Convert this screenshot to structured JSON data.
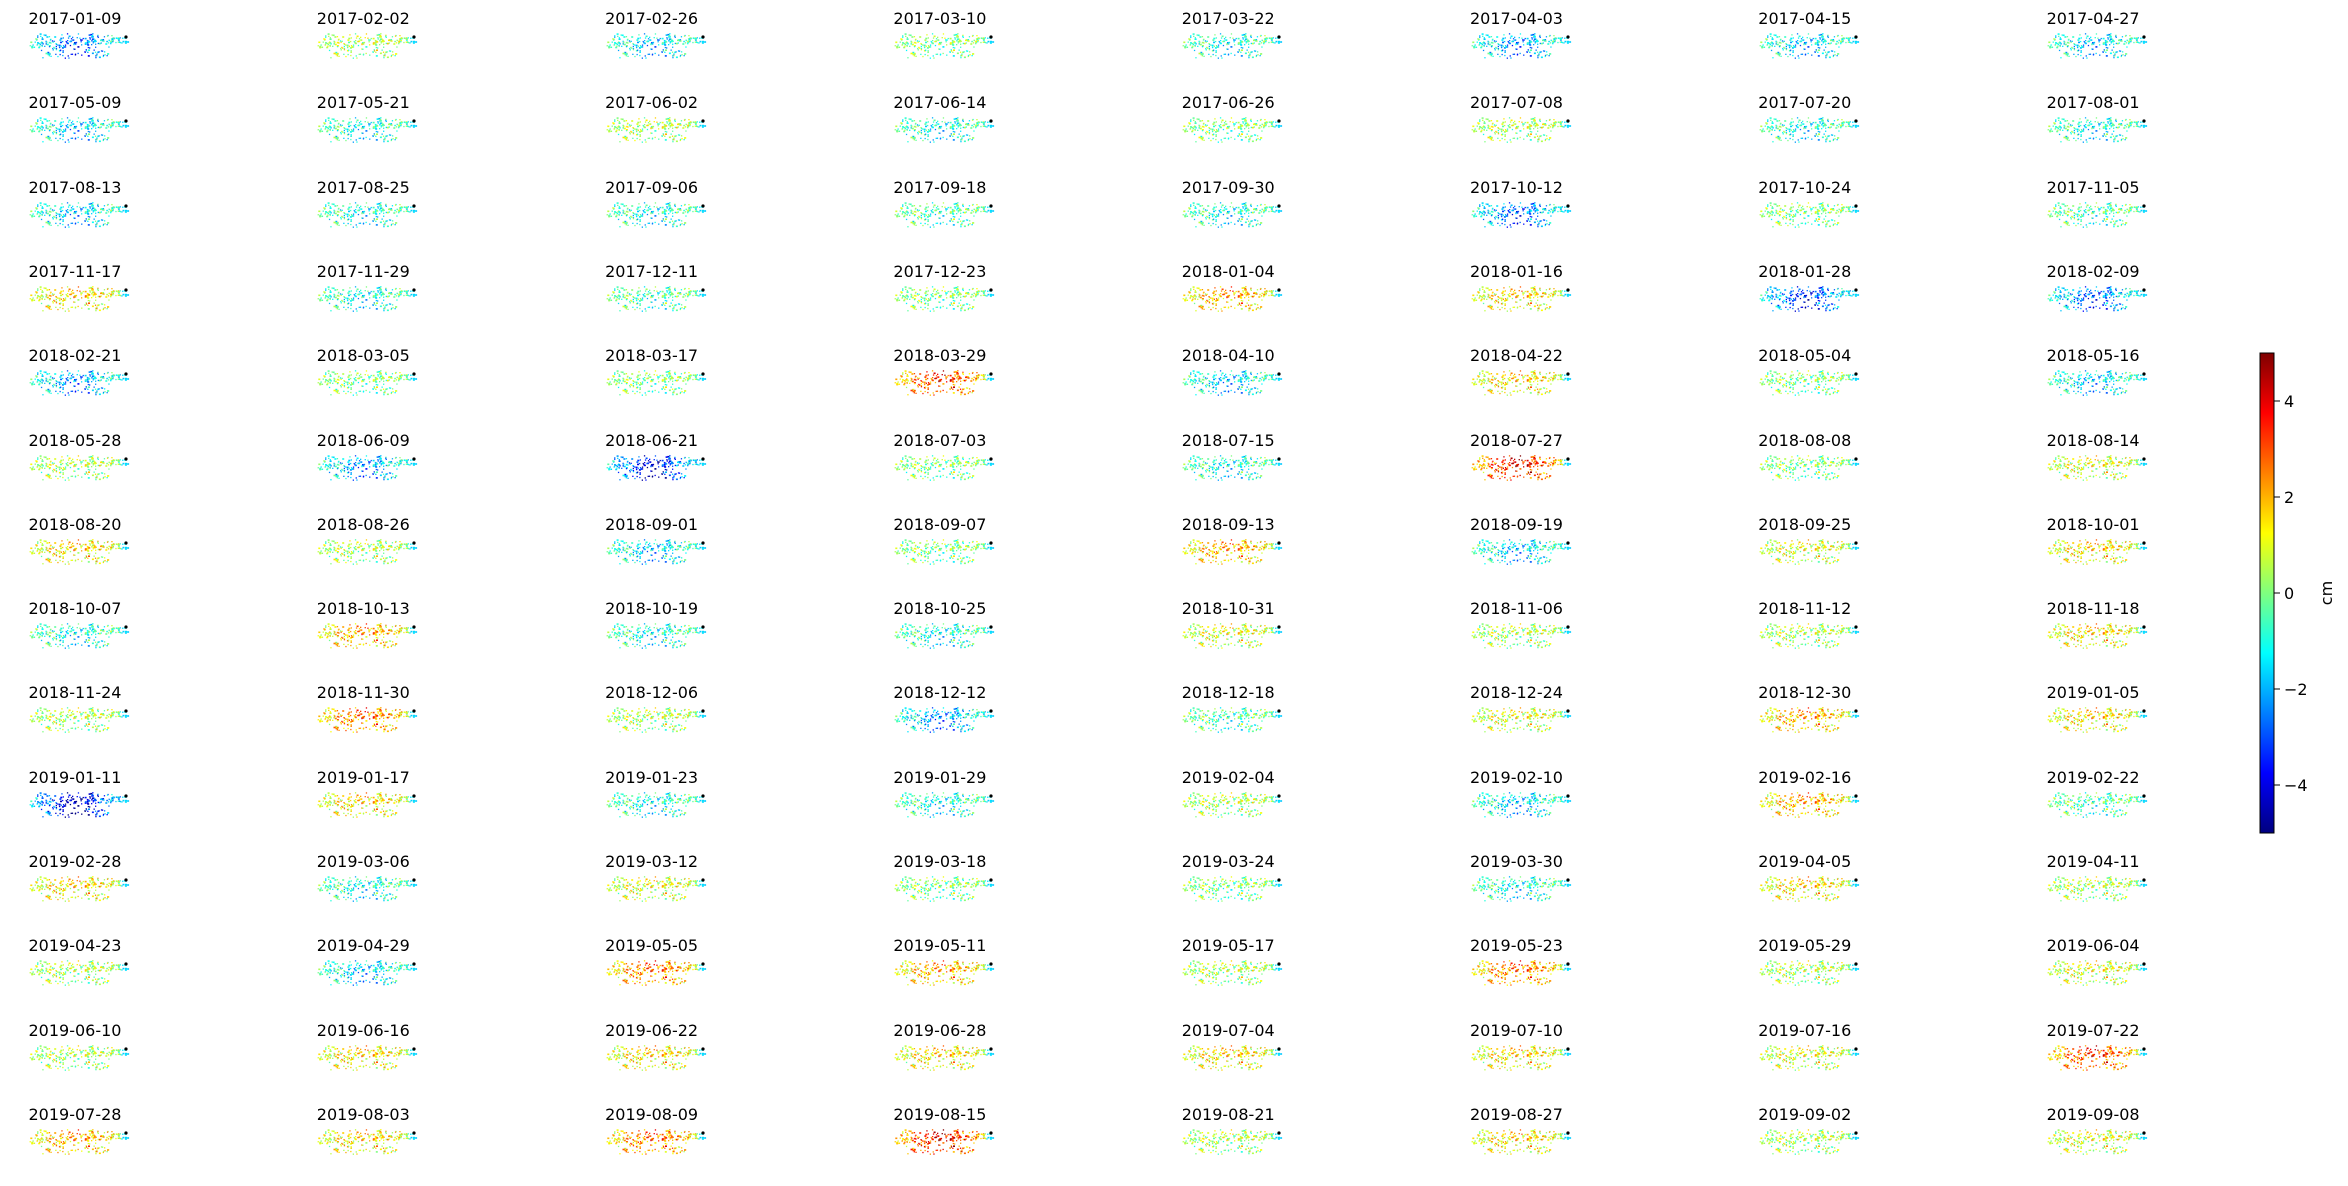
{
  "chart_data": {
    "type": "heatmap",
    "description_free": true,
    "panel_dates": [
      "2017-01-09",
      "2017-02-02",
      "2017-02-26",
      "2017-03-10",
      "2017-03-22",
      "2017-04-03",
      "2017-04-15",
      "2017-04-27",
      "2017-05-09",
      "2017-05-21",
      "2017-06-02",
      "2017-06-14",
      "2017-06-26",
      "2017-07-08",
      "2017-07-20",
      "2017-08-01",
      "2017-08-13",
      "2017-08-25",
      "2017-09-06",
      "2017-09-18",
      "2017-09-30",
      "2017-10-12",
      "2017-10-24",
      "2017-11-05",
      "2017-11-17",
      "2017-11-29",
      "2017-12-11",
      "2017-12-23",
      "2018-01-04",
      "2018-01-16",
      "2018-01-28",
      "2018-02-09",
      "2018-02-21",
      "2018-03-05",
      "2018-03-17",
      "2018-03-29",
      "2018-04-10",
      "2018-04-22",
      "2018-05-04",
      "2018-05-16",
      "2018-05-28",
      "2018-06-09",
      "2018-06-21",
      "2018-07-03",
      "2018-07-15",
      "2018-07-27",
      "2018-08-08",
      "2018-08-14",
      "2018-08-20",
      "2018-08-26",
      "2018-09-01",
      "2018-09-07",
      "2018-09-13",
      "2018-09-19",
      "2018-09-25",
      "2018-10-01",
      "2018-10-07",
      "2018-10-13",
      "2018-10-19",
      "2018-10-25",
      "2018-10-31",
      "2018-11-06",
      "2018-11-12",
      "2018-11-18",
      "2018-11-24",
      "2018-11-30",
      "2018-12-06",
      "2018-12-12",
      "2018-12-18",
      "2018-12-24",
      "2018-12-30",
      "2019-01-05",
      "2019-01-11",
      "2019-01-17",
      "2019-01-23",
      "2019-01-29",
      "2019-02-04",
      "2019-02-10",
      "2019-02-16",
      "2019-02-22",
      "2019-02-28",
      "2019-03-06",
      "2019-03-12",
      "2019-03-18",
      "2019-03-24",
      "2019-03-30",
      "2019-04-05",
      "2019-04-11",
      "2019-04-23",
      "2019-04-29",
      "2019-05-05",
      "2019-05-11",
      "2019-05-17",
      "2019-05-23",
      "2019-05-29",
      "2019-06-04",
      "2019-06-10",
      "2019-06-16",
      "2019-06-22",
      "2019-06-28",
      "2019-07-04",
      "2019-07-10",
      "2019-07-16",
      "2019-07-22",
      "2019-07-28",
      "2019-08-03",
      "2019-08-09",
      "2019-08-15",
      "2019-08-21",
      "2019-08-27",
      "2019-09-02",
      "2019-09-08"
    ],
    "panel_mean_displacement_cm": [
      -2.5,
      0.5,
      -1.5,
      0.0,
      -1.0,
      -2.0,
      -1.5,
      -1.5,
      -1.5,
      -1.0,
      0.5,
      -1.0,
      0.0,
      0.5,
      -1.0,
      -1.0,
      -1.5,
      -1.0,
      -1.0,
      -0.5,
      -1.0,
      -2.5,
      0.0,
      -0.5,
      1.5,
      -1.0,
      -0.5,
      0.0,
      2.0,
      1.5,
      -3.0,
      -2.5,
      -2.0,
      0.0,
      0.0,
      3.0,
      -1.5,
      1.5,
      0.0,
      -1.5,
      0.5,
      -2.0,
      -3.5,
      0.0,
      -1.0,
      3.5,
      0.0,
      1.0,
      1.5,
      0.5,
      -1.5,
      0.0,
      2.0,
      -1.5,
      1.0,
      1.5,
      -1.0,
      2.0,
      -1.0,
      -1.0,
      1.0,
      0.5,
      0.5,
      1.5,
      0.5,
      2.5,
      0.5,
      -2.0,
      -0.5,
      1.0,
      2.0,
      1.5,
      -4.0,
      1.5,
      -1.0,
      -1.0,
      0.5,
      -1.5,
      2.0,
      -0.5,
      1.5,
      -1.0,
      1.0,
      0.0,
      0.0,
      -1.0,
      1.5,
      0.5,
      0.5,
      -1.5,
      2.5,
      2.0,
      0.5,
      2.5,
      0.5,
      1.0,
      0.5,
      1.5,
      1.5,
      1.5,
      1.5,
      1.5,
      1.0,
      3.0,
      2.0,
      1.5,
      2.5,
      3.5,
      0.5,
      1.5,
      0.5,
      1.0
    ],
    "colorbar": {
      "label": "cm",
      "range": [
        -5,
        5
      ],
      "ticks": [
        4,
        2,
        0,
        -2,
        -4
      ],
      "tick_labels": [
        "4",
        "2",
        "0",
        "−2",
        "−4"
      ],
      "colormap": "jet"
    },
    "grid": false,
    "axes": "off",
    "rows": 14,
    "cols": 8
  }
}
